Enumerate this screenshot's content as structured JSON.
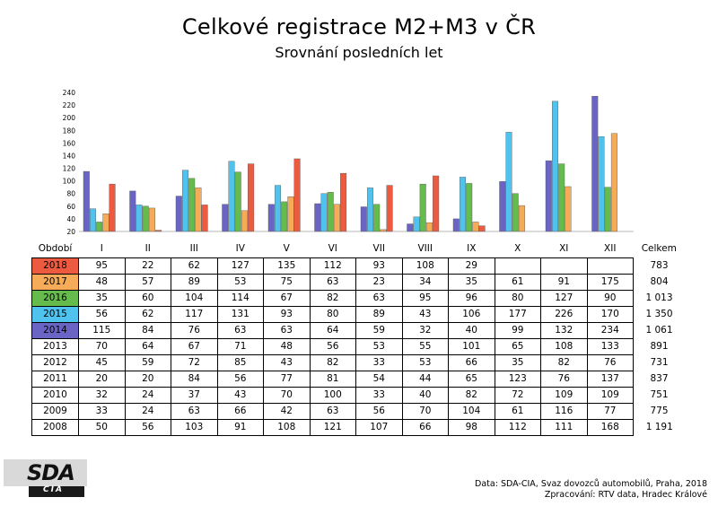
{
  "chart_data": {
    "type": "bar",
    "title": "Celkové registrace M2+M3 v ČR",
    "subtitle": "Srovnání posledních let",
    "categories": [
      "I",
      "II",
      "III",
      "IV",
      "V",
      "VI",
      "VII",
      "VIII",
      "IX",
      "X",
      "XI",
      "XII"
    ],
    "ylim": [
      20,
      240
    ],
    "yticks": [
      20,
      40,
      60,
      80,
      100,
      120,
      140,
      160,
      180,
      200,
      220,
      240
    ],
    "series": [
      {
        "name": "2014",
        "color": "#6a64c4",
        "values": [
          115,
          84,
          76,
          63,
          63,
          64,
          59,
          32,
          40,
          99,
          132,
          234
        ]
      },
      {
        "name": "2015",
        "color": "#4fc3ee",
        "values": [
          56,
          62,
          117,
          131,
          93,
          80,
          89,
          43,
          106,
          177,
          226,
          170
        ]
      },
      {
        "name": "2016",
        "color": "#66bb4d",
        "values": [
          35,
          60,
          104,
          114,
          67,
          82,
          63,
          95,
          96,
          80,
          127,
          90
        ]
      },
      {
        "name": "2017",
        "color": "#f5ab57",
        "values": [
          48,
          57,
          89,
          53,
          75,
          63,
          23,
          34,
          35,
          61,
          91,
          175
        ]
      },
      {
        "name": "2018",
        "color": "#ec5b3f",
        "values": [
          95,
          22,
          62,
          127,
          135,
          112,
          93,
          108,
          29,
          null,
          null,
          null
        ]
      }
    ]
  },
  "table": {
    "period_label": "Období",
    "total_label": "Celkem",
    "months": [
      "I",
      "II",
      "III",
      "IV",
      "V",
      "VI",
      "VII",
      "VIII",
      "IX",
      "X",
      "XI",
      "XII"
    ],
    "rows": [
      {
        "year": "2018",
        "color": "#ec5b3f",
        "values": [
          "95",
          "22",
          "62",
          "127",
          "135",
          "112",
          "93",
          "108",
          "29",
          "",
          "",
          ""
        ],
        "total": "783"
      },
      {
        "year": "2017",
        "color": "#f5ab57",
        "values": [
          "48",
          "57",
          "89",
          "53",
          "75",
          "63",
          "23",
          "34",
          "35",
          "61",
          "91",
          "175"
        ],
        "total": "804"
      },
      {
        "year": "2016",
        "color": "#66bb4d",
        "values": [
          "35",
          "60",
          "104",
          "114",
          "67",
          "82",
          "63",
          "95",
          "96",
          "80",
          "127",
          "90"
        ],
        "total": "1 013"
      },
      {
        "year": "2015",
        "color": "#4fc3ee",
        "values": [
          "56",
          "62",
          "117",
          "131",
          "93",
          "80",
          "89",
          "43",
          "106",
          "177",
          "226",
          "170"
        ],
        "total": "1 350"
      },
      {
        "year": "2014",
        "color": "#6a64c4",
        "values": [
          "115",
          "84",
          "76",
          "63",
          "63",
          "64",
          "59",
          "32",
          "40",
          "99",
          "132",
          "234"
        ],
        "total": "1 061"
      },
      {
        "year": "2013",
        "color": "",
        "values": [
          "70",
          "64",
          "67",
          "71",
          "48",
          "56",
          "53",
          "55",
          "101",
          "65",
          "108",
          "133"
        ],
        "total": "891"
      },
      {
        "year": "2012",
        "color": "",
        "values": [
          "45",
          "59",
          "72",
          "85",
          "43",
          "82",
          "33",
          "53",
          "66",
          "35",
          "82",
          "76"
        ],
        "total": "731"
      },
      {
        "year": "2011",
        "color": "",
        "values": [
          "20",
          "20",
          "84",
          "56",
          "77",
          "81",
          "54",
          "44",
          "65",
          "123",
          "76",
          "137"
        ],
        "total": "837"
      },
      {
        "year": "2010",
        "color": "",
        "values": [
          "32",
          "24",
          "37",
          "43",
          "70",
          "100",
          "33",
          "40",
          "82",
          "72",
          "109",
          "109"
        ],
        "total": "751"
      },
      {
        "year": "2009",
        "color": "",
        "values": [
          "33",
          "24",
          "63",
          "66",
          "42",
          "63",
          "56",
          "70",
          "104",
          "61",
          "116",
          "77"
        ],
        "total": "775"
      },
      {
        "year": "2008",
        "color": "",
        "values": [
          "50",
          "56",
          "103",
          "91",
          "108",
          "121",
          "107",
          "66",
          "98",
          "112",
          "111",
          "168"
        ],
        "total": "1 191"
      }
    ]
  },
  "logo": {
    "main": "SDA",
    "sub": "CIA"
  },
  "footer": {
    "source": "Data: SDA-CIA, Svaz dovozců automobilů, Praha, 2018",
    "processed": "Zpracování: RTV data, Hradec Králové"
  }
}
